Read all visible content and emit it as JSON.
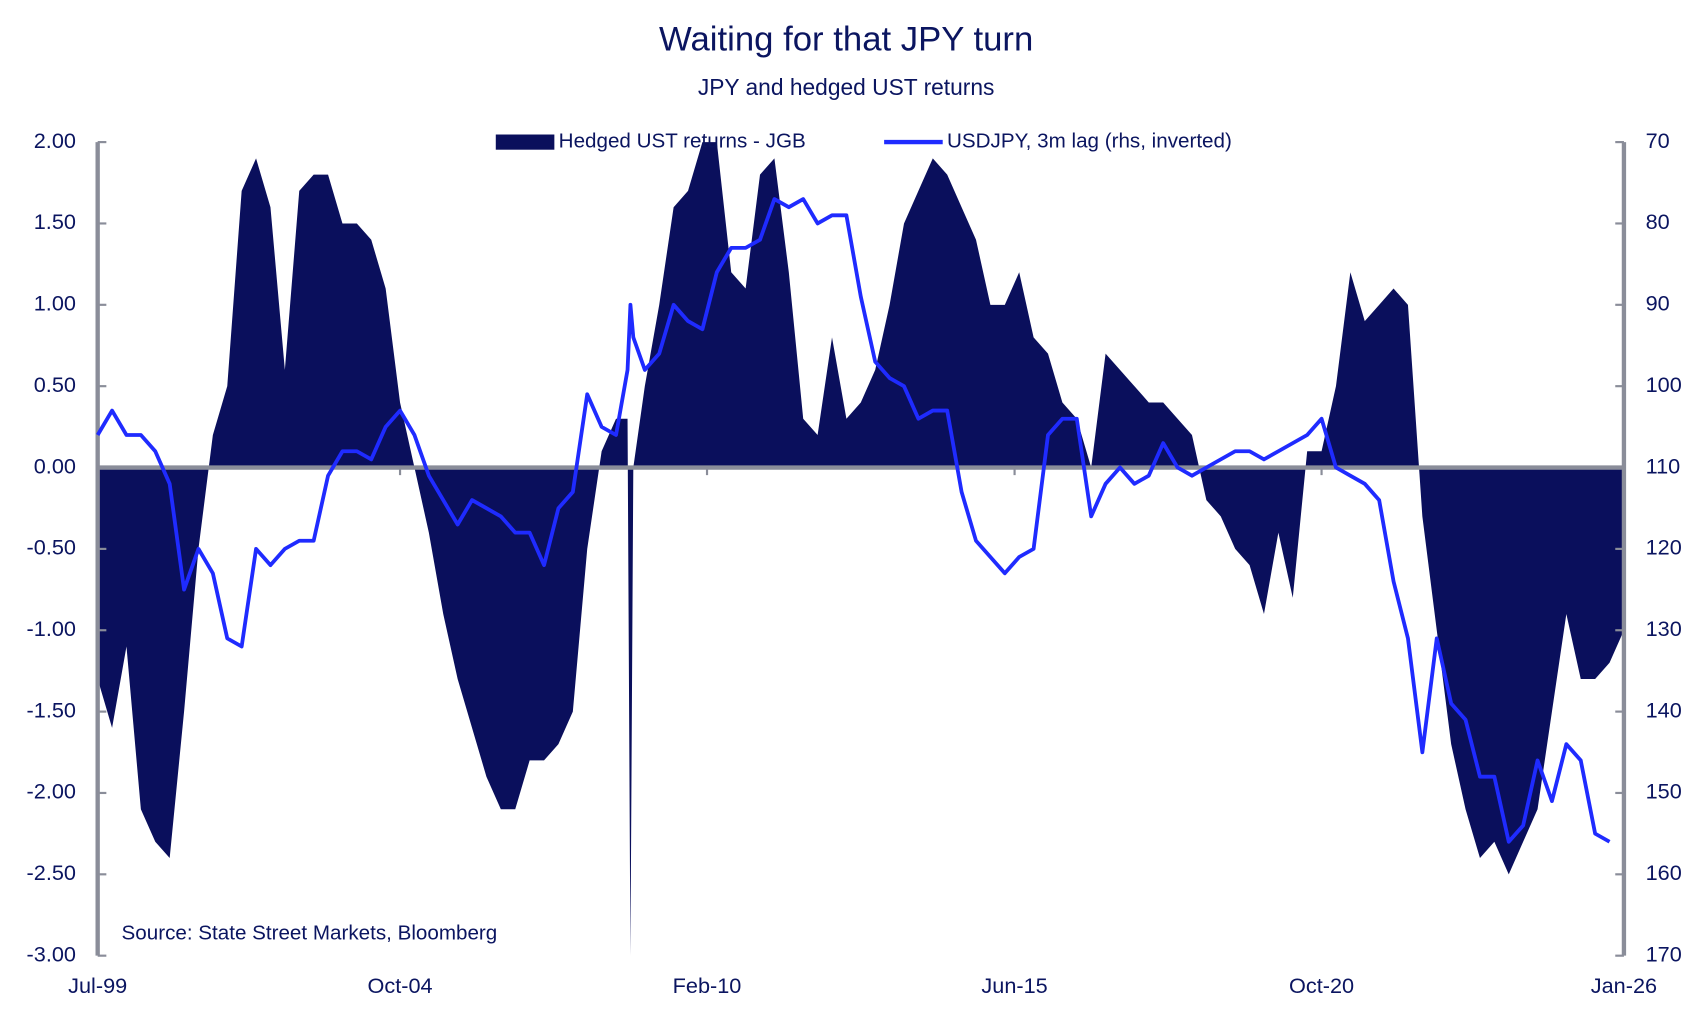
{
  "chart_data": {
    "type": "area-line",
    "title": "Waiting for that JPY turn",
    "subtitle": "JPY and hedged UST returns",
    "note": "Source: State Street Markets, Bloomberg",
    "x": [
      1999.5,
      1999.75,
      2000.0,
      2000.25,
      2000.5,
      2000.75,
      2001.0,
      2001.25,
      2001.5,
      2001.75,
      2002.0,
      2002.25,
      2002.5,
      2002.75,
      2003.0,
      2003.25,
      2003.5,
      2003.75,
      2004.0,
      2004.25,
      2004.5,
      2004.75,
      2005.0,
      2005.25,
      2005.5,
      2005.75,
      2006.0,
      2006.25,
      2006.5,
      2006.75,
      2007.0,
      2007.25,
      2007.5,
      2007.75,
      2008.0,
      2008.25,
      2008.5,
      2008.7,
      2008.75,
      2008.8,
      2009.0,
      2009.25,
      2009.5,
      2009.75,
      2010.0,
      2010.25,
      2010.5,
      2010.75,
      2011.0,
      2011.25,
      2011.5,
      2011.75,
      2012.0,
      2012.25,
      2012.5,
      2012.75,
      2013.0,
      2013.25,
      2013.5,
      2013.75,
      2014.0,
      2014.25,
      2014.5,
      2014.75,
      2015.0,
      2015.25,
      2015.5,
      2015.75,
      2016.0,
      2016.25,
      2016.5,
      2016.75,
      2017.0,
      2017.25,
      2017.5,
      2017.75,
      2018.0,
      2018.25,
      2018.5,
      2018.75,
      2019.0,
      2019.25,
      2019.5,
      2019.75,
      2020.0,
      2020.25,
      2020.5,
      2020.75,
      2021.0,
      2021.25,
      2021.5,
      2021.75,
      2022.0,
      2022.25,
      2022.5,
      2022.75,
      2023.0,
      2023.25,
      2023.5,
      2023.75,
      2024.0,
      2024.25,
      2024.5,
      2024.75,
      2025.0,
      2025.25,
      2025.5,
      2025.75,
      2026.0
    ],
    "series": [
      {
        "name": "Hedged UST returns - JGB",
        "kind": "area",
        "color": "#0a0f5c",
        "values": [
          -1.3,
          -1.6,
          -1.1,
          -2.1,
          -2.3,
          -2.4,
          -1.5,
          -0.5,
          0.2,
          0.5,
          1.7,
          1.9,
          1.6,
          0.6,
          1.7,
          1.8,
          1.8,
          1.5,
          1.5,
          1.4,
          1.1,
          0.4,
          0.0,
          -0.4,
          -0.9,
          -1.3,
          -1.6,
          -1.9,
          -2.1,
          -2.1,
          -1.8,
          -1.8,
          -1.7,
          -1.5,
          -0.5,
          0.1,
          0.3,
          0.3,
          -3.0,
          0.0,
          0.5,
          1.0,
          1.6,
          1.7,
          2.0,
          2.0,
          1.2,
          1.1,
          1.8,
          1.9,
          1.2,
          0.3,
          0.2,
          0.8,
          0.3,
          0.4,
          0.6,
          1.0,
          1.5,
          1.7,
          1.9,
          1.8,
          1.6,
          1.4,
          1.0,
          1.0,
          1.2,
          0.8,
          0.7,
          0.4,
          0.3,
          0.0,
          0.7,
          0.6,
          0.5,
          0.4,
          0.4,
          0.3,
          0.2,
          -0.2,
          -0.3,
          -0.5,
          -0.6,
          -0.9,
          -0.4,
          -0.8,
          0.1,
          0.1,
          0.5,
          1.2,
          0.9,
          1.0,
          1.1,
          1.0,
          -0.3,
          -1.0,
          -1.7,
          -2.1,
          -2.4,
          -2.3,
          -2.5,
          -2.3,
          -2.1,
          -1.5,
          -0.9,
          -1.3,
          -1.3,
          -1.2,
          -1.0
        ]
      },
      {
        "name": "USDJPY, 3m lag (rhs, inverted)",
        "kind": "line",
        "axis": "y2",
        "color": "#1f2bff",
        "values": [
          106,
          103,
          106,
          106,
          108,
          112,
          125,
          120,
          123,
          131,
          132,
          120,
          122,
          120,
          119,
          119,
          111,
          108,
          108,
          109,
          105,
          103,
          106,
          111,
          114,
          117,
          114,
          115,
          116,
          118,
          118,
          122,
          115,
          113,
          101,
          105,
          106,
          98,
          90,
          94,
          98,
          96,
          90,
          92,
          93,
          86,
          83,
          83,
          82,
          77,
          78,
          77,
          80,
          79,
          79,
          89,
          97,
          99,
          100,
          104,
          103,
          103,
          113,
          119,
          121,
          123,
          121,
          120,
          106,
          104,
          104,
          116,
          112,
          110,
          112,
          111,
          107,
          110,
          111,
          110,
          109,
          108,
          108,
          109,
          108,
          107,
          106,
          104,
          110,
          111,
          112,
          114,
          124,
          131,
          145,
          131,
          139,
          141,
          148,
          148,
          156,
          154,
          146,
          151,
          144,
          146,
          155,
          156,
          null
        ]
      }
    ],
    "xlim": [
      1999.5,
      2026.0
    ],
    "xticks": [
      {
        "value": 1999.5,
        "label": "Jul-99"
      },
      {
        "value": 2004.75,
        "label": "Oct-04"
      },
      {
        "value": 2010.08,
        "label": "Feb-10"
      },
      {
        "value": 2015.42,
        "label": "Jun-15"
      },
      {
        "value": 2020.75,
        "label": "Oct-20"
      },
      {
        "value": 2026.0,
        "label": "Jan-26"
      }
    ],
    "ylim": [
      -3.0,
      2.0
    ],
    "yticks": [
      {
        "value": 2.0,
        "label": "2.00"
      },
      {
        "value": 1.5,
        "label": "1.50"
      },
      {
        "value": 1.0,
        "label": "1.00"
      },
      {
        "value": 0.5,
        "label": "0.50"
      },
      {
        "value": 0.0,
        "label": "0.00"
      },
      {
        "value": -0.5,
        "label": "-0.50"
      },
      {
        "value": -1.0,
        "label": "-1.00"
      },
      {
        "value": -1.5,
        "label": "-1.50"
      },
      {
        "value": -2.0,
        "label": "-2.00"
      },
      {
        "value": -2.5,
        "label": "-2.50"
      },
      {
        "value": -3.0,
        "label": "-3.00"
      }
    ],
    "y2lim": [
      70,
      170
    ],
    "y2ticks": [
      70,
      80,
      90,
      100,
      110,
      120,
      130,
      140,
      150,
      160,
      170
    ],
    "y2_inverted": true,
    "legend": "top"
  }
}
